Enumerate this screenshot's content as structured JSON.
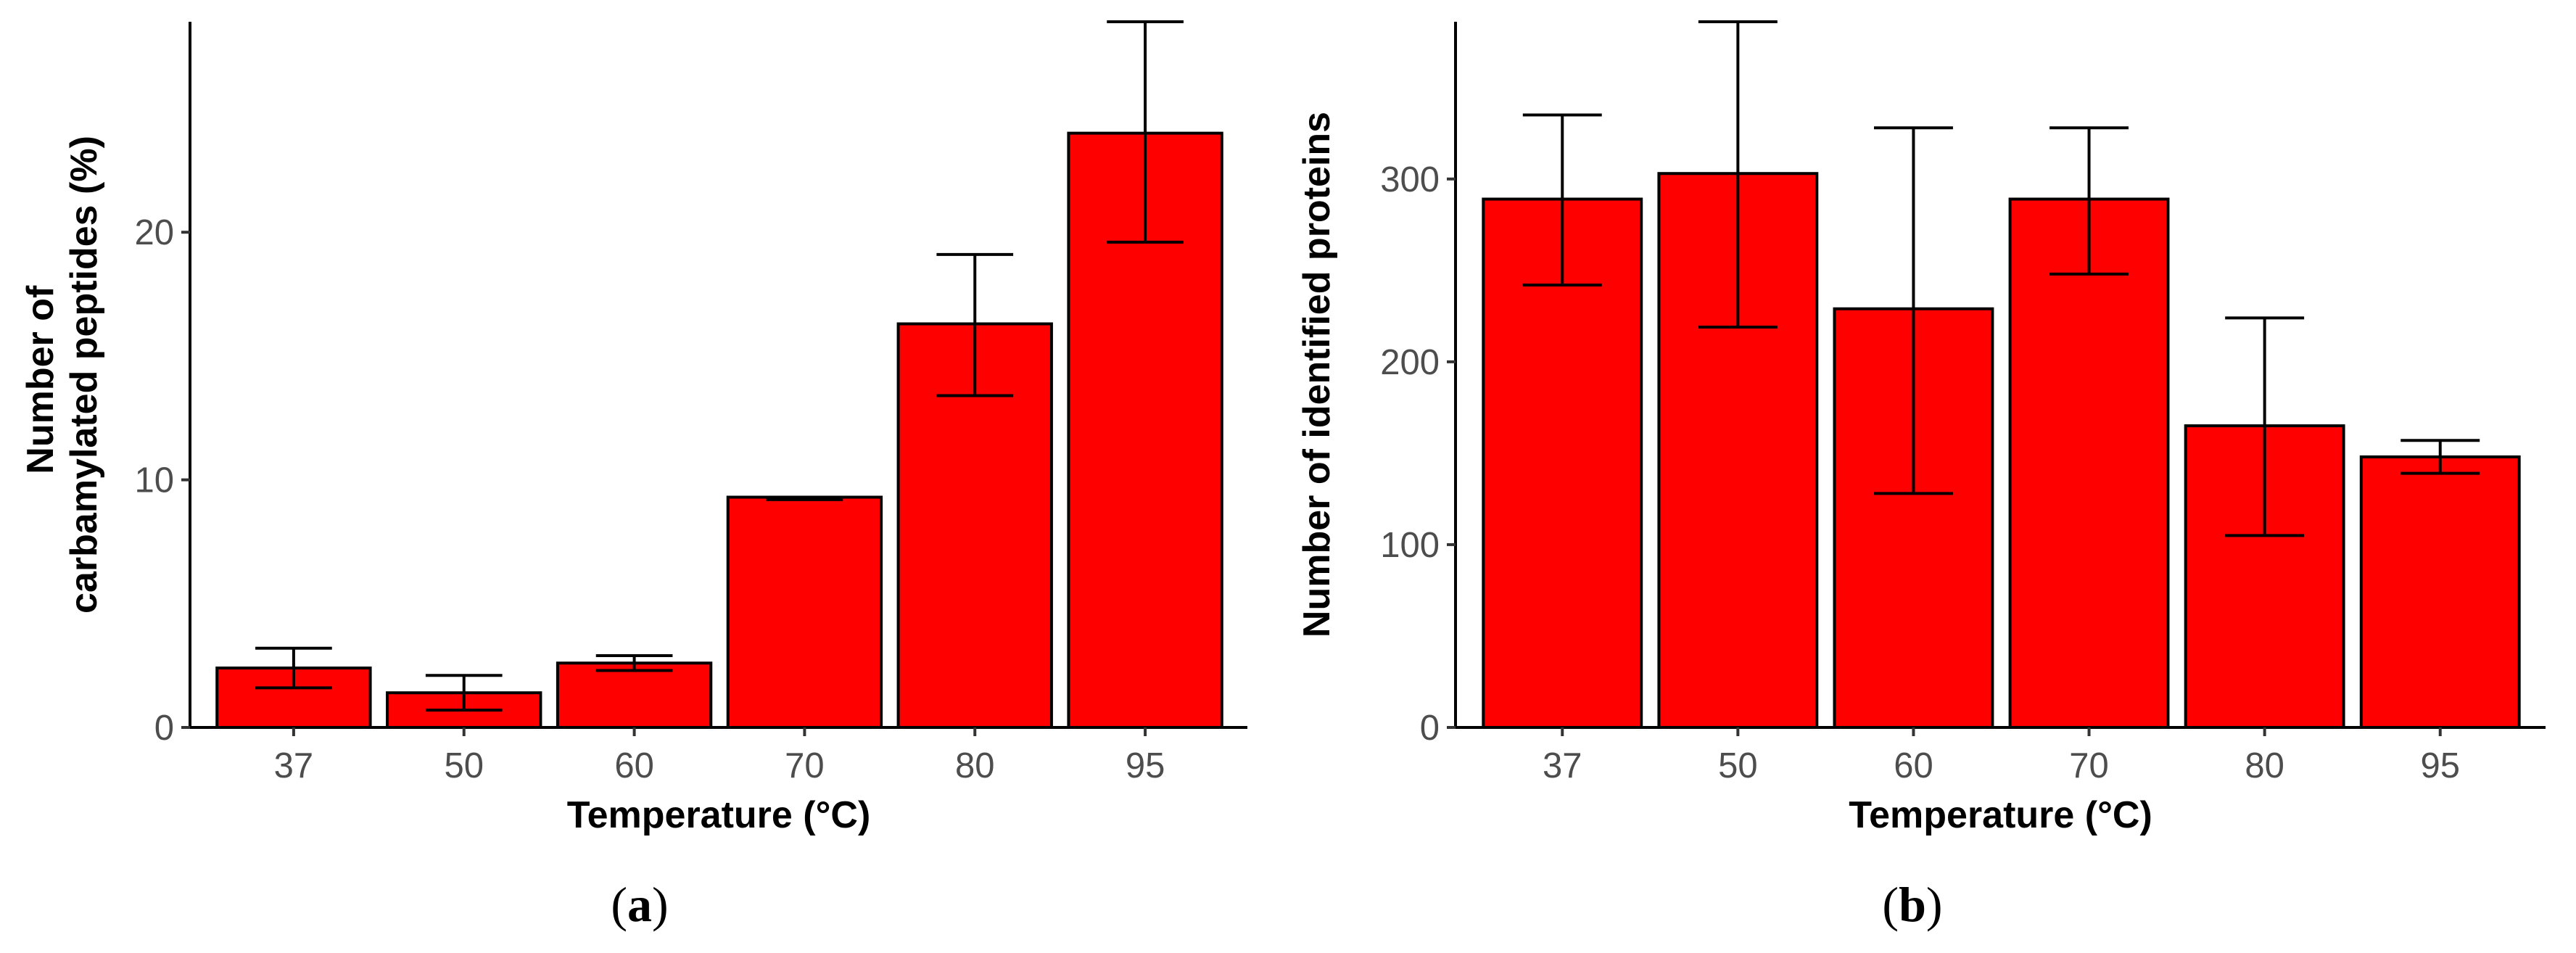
{
  "chart_data": [
    {
      "type": "bar",
      "panel_label": "(a)",
      "panel_letter": "a",
      "categories": [
        "37",
        "50",
        "60",
        "70",
        "80",
        "95"
      ],
      "values": [
        2.4,
        1.4,
        2.6,
        9.3,
        16.3,
        24.0
      ],
      "error_low": [
        1.6,
        0.7,
        2.3,
        9.2,
        13.4,
        19.6
      ],
      "error_high": [
        3.2,
        2.1,
        2.9,
        9.3,
        19.1,
        28.5
      ],
      "ylim": [
        0,
        28.5
      ],
      "yticks": [
        0,
        10,
        20
      ],
      "xlabel": "Temperature (°C)",
      "ylabel_lines": [
        "Number of",
        "carbamylated peptides (%)"
      ],
      "bar_color": "#ff0000"
    },
    {
      "type": "bar",
      "panel_label": "(b)",
      "panel_letter": "b",
      "categories": [
        "37",
        "50",
        "60",
        "70",
        "80",
        "95"
      ],
      "values": [
        289,
        303,
        229,
        289,
        165,
        148
      ],
      "error_low": [
        242,
        219,
        128,
        248,
        105,
        139
      ],
      "error_high": [
        335,
        386,
        328,
        328,
        224,
        157
      ],
      "ylim": [
        0,
        386
      ],
      "yticks": [
        0,
        100,
        200,
        300
      ],
      "xlabel": "Temperature (°C)",
      "ylabel_lines": [
        "Number of identified proteins"
      ],
      "bar_color": "#ff0000"
    }
  ]
}
